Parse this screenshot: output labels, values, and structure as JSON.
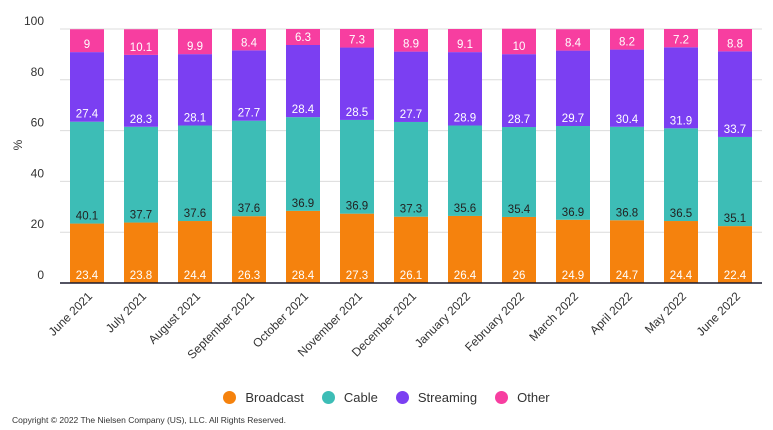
{
  "chart_data": {
    "type": "bar",
    "stacked": true,
    "ylabel": "%",
    "ylim": [
      0,
      100
    ],
    "yticks": [
      0,
      20,
      40,
      60,
      80,
      100
    ],
    "grid": true,
    "categories": [
      "June 2021",
      "July 2021",
      "August 2021",
      "September 2021",
      "October 2021",
      "November 2021",
      "December 2021",
      "January 2022",
      "February 2022",
      "March 2022",
      "April 2022",
      "May 2022",
      "June 2022"
    ],
    "series": [
      {
        "name": "Broadcast",
        "color": "#f5820d",
        "values": [
          23.4,
          23.8,
          24.4,
          26.3,
          28.4,
          27.3,
          26.1,
          26.4,
          26,
          24.9,
          24.7,
          24.4,
          22.4
        ]
      },
      {
        "name": "Cable",
        "color": "#3dbdb6",
        "values": [
          40.1,
          37.7,
          37.6,
          37.6,
          36.9,
          36.9,
          37.3,
          35.6,
          35.4,
          36.9,
          36.8,
          36.5,
          35.1
        ]
      },
      {
        "name": "Streaming",
        "color": "#7b3ff2",
        "values": [
          27.4,
          28.3,
          28.1,
          27.7,
          28.4,
          28.5,
          27.7,
          28.9,
          28.7,
          29.7,
          30.4,
          31.9,
          33.7
        ]
      },
      {
        "name": "Other",
        "color": "#f73ea0",
        "values": [
          9,
          10.1,
          9.9,
          8.4,
          6.3,
          7.3,
          8.9,
          9.1,
          10,
          8.4,
          8.2,
          7.2,
          8.8
        ]
      }
    ],
    "legend_position": "bottom-center"
  },
  "footer": {
    "copyright": "Copyright © 2022 The Nielsen Company (US), LLC. All Rights Reserved."
  }
}
